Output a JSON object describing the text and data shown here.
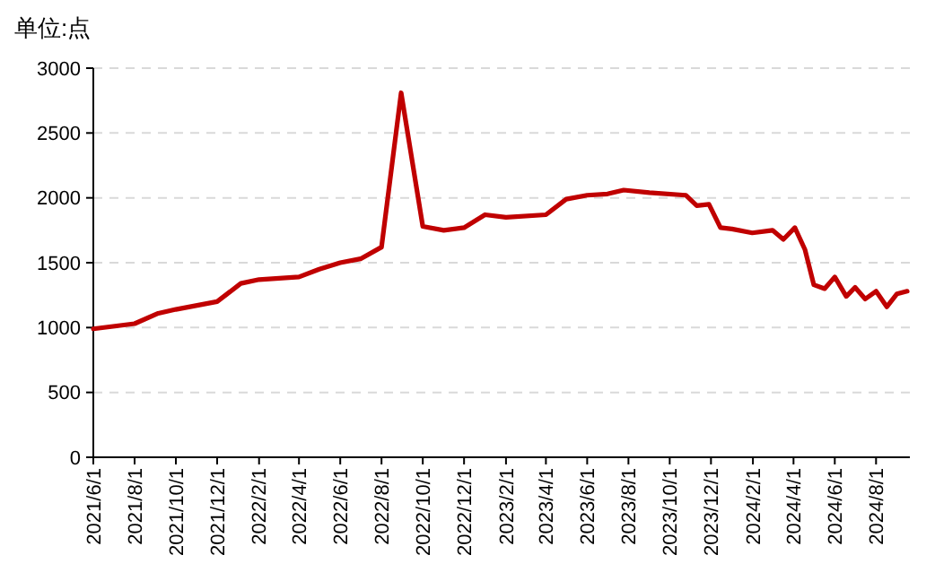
{
  "chart_data": {
    "type": "line",
    "title": "单位:点",
    "x": [
      "2021-06-01",
      "2021-08-01",
      "2021-09-05",
      "2021-10-01",
      "2021-12-01",
      "2022-01-05",
      "2022-02-01",
      "2022-04-01",
      "2022-05-01",
      "2022-06-01",
      "2022-07-01",
      "2022-08-01",
      "2022-08-30",
      "2022-10-01",
      "2022-11-01",
      "2022-12-01",
      "2023-01-01",
      "2023-02-01",
      "2023-04-01",
      "2023-05-01",
      "2023-06-01",
      "2023-07-01",
      "2023-07-25",
      "2023-09-01",
      "2023-10-25",
      "2023-11-10",
      "2023-11-28",
      "2023-12-15",
      "2024-01-01",
      "2024-01-31",
      "2024-03-01",
      "2024-03-17",
      "2024-04-03",
      "2024-04-18",
      "2024-05-01",
      "2024-05-17",
      "2024-06-01",
      "2024-06-18",
      "2024-07-01",
      "2024-07-16",
      "2024-08-01",
      "2024-08-17",
      "2024-09-01",
      "2024-09-16"
    ],
    "series": [
      {
        "color": "#c00000",
        "values": [
          990,
          1030,
          1110,
          1140,
          1200,
          1340,
          1370,
          1390,
          1450,
          1500,
          1530,
          1620,
          2810,
          1780,
          1750,
          1770,
          1870,
          1850,
          1870,
          1990,
          2020,
          2030,
          2060,
          2040,
          2020,
          1940,
          1950,
          1770,
          1760,
          1730,
          1750,
          1680,
          1770,
          1600,
          1330,
          1300,
          1390,
          1240,
          1310,
          1220,
          1280,
          1160,
          1260,
          1280
        ]
      }
    ],
    "xlim": [
      "2021-06-01",
      "2024-09-20"
    ],
    "xticks": [
      {
        "value": "2021-06-01",
        "label": "2021/6/1"
      },
      {
        "value": "2021-08-01",
        "label": "2021/8/1"
      },
      {
        "value": "2021-10-01",
        "label": "2021/10/1"
      },
      {
        "value": "2021-12-01",
        "label": "2021/12/1"
      },
      {
        "value": "2022-02-01",
        "label": "2022/2/1"
      },
      {
        "value": "2022-04-01",
        "label": "2022/4/1"
      },
      {
        "value": "2022-06-01",
        "label": "2022/6/1"
      },
      {
        "value": "2022-08-01",
        "label": "2022/8/1"
      },
      {
        "value": "2022-10-01",
        "label": "2022/10/1"
      },
      {
        "value": "2022-12-01",
        "label": "2022/12/1"
      },
      {
        "value": "2023-02-01",
        "label": "2023/2/1"
      },
      {
        "value": "2023-04-01",
        "label": "2023/4/1"
      },
      {
        "value": "2023-06-01",
        "label": "2023/6/1"
      },
      {
        "value": "2023-08-01",
        "label": "2023/8/1"
      },
      {
        "value": "2023-10-01",
        "label": "2023/10/1"
      },
      {
        "value": "2023-12-01",
        "label": "2023/12/1"
      },
      {
        "value": "2024-02-01",
        "label": "2024/2/1"
      },
      {
        "value": "2024-04-01",
        "label": "2024/4/1"
      },
      {
        "value": "2024-06-01",
        "label": "2024/6/1"
      },
      {
        "value": "2024-08-01",
        "label": "2024/8/1"
      }
    ],
    "ylim": [
      0,
      3000
    ],
    "yticks": [
      0,
      500,
      1000,
      1500,
      2000,
      2500,
      3000
    ],
    "grid": "y",
    "marker": "none",
    "line_style": "solid"
  }
}
